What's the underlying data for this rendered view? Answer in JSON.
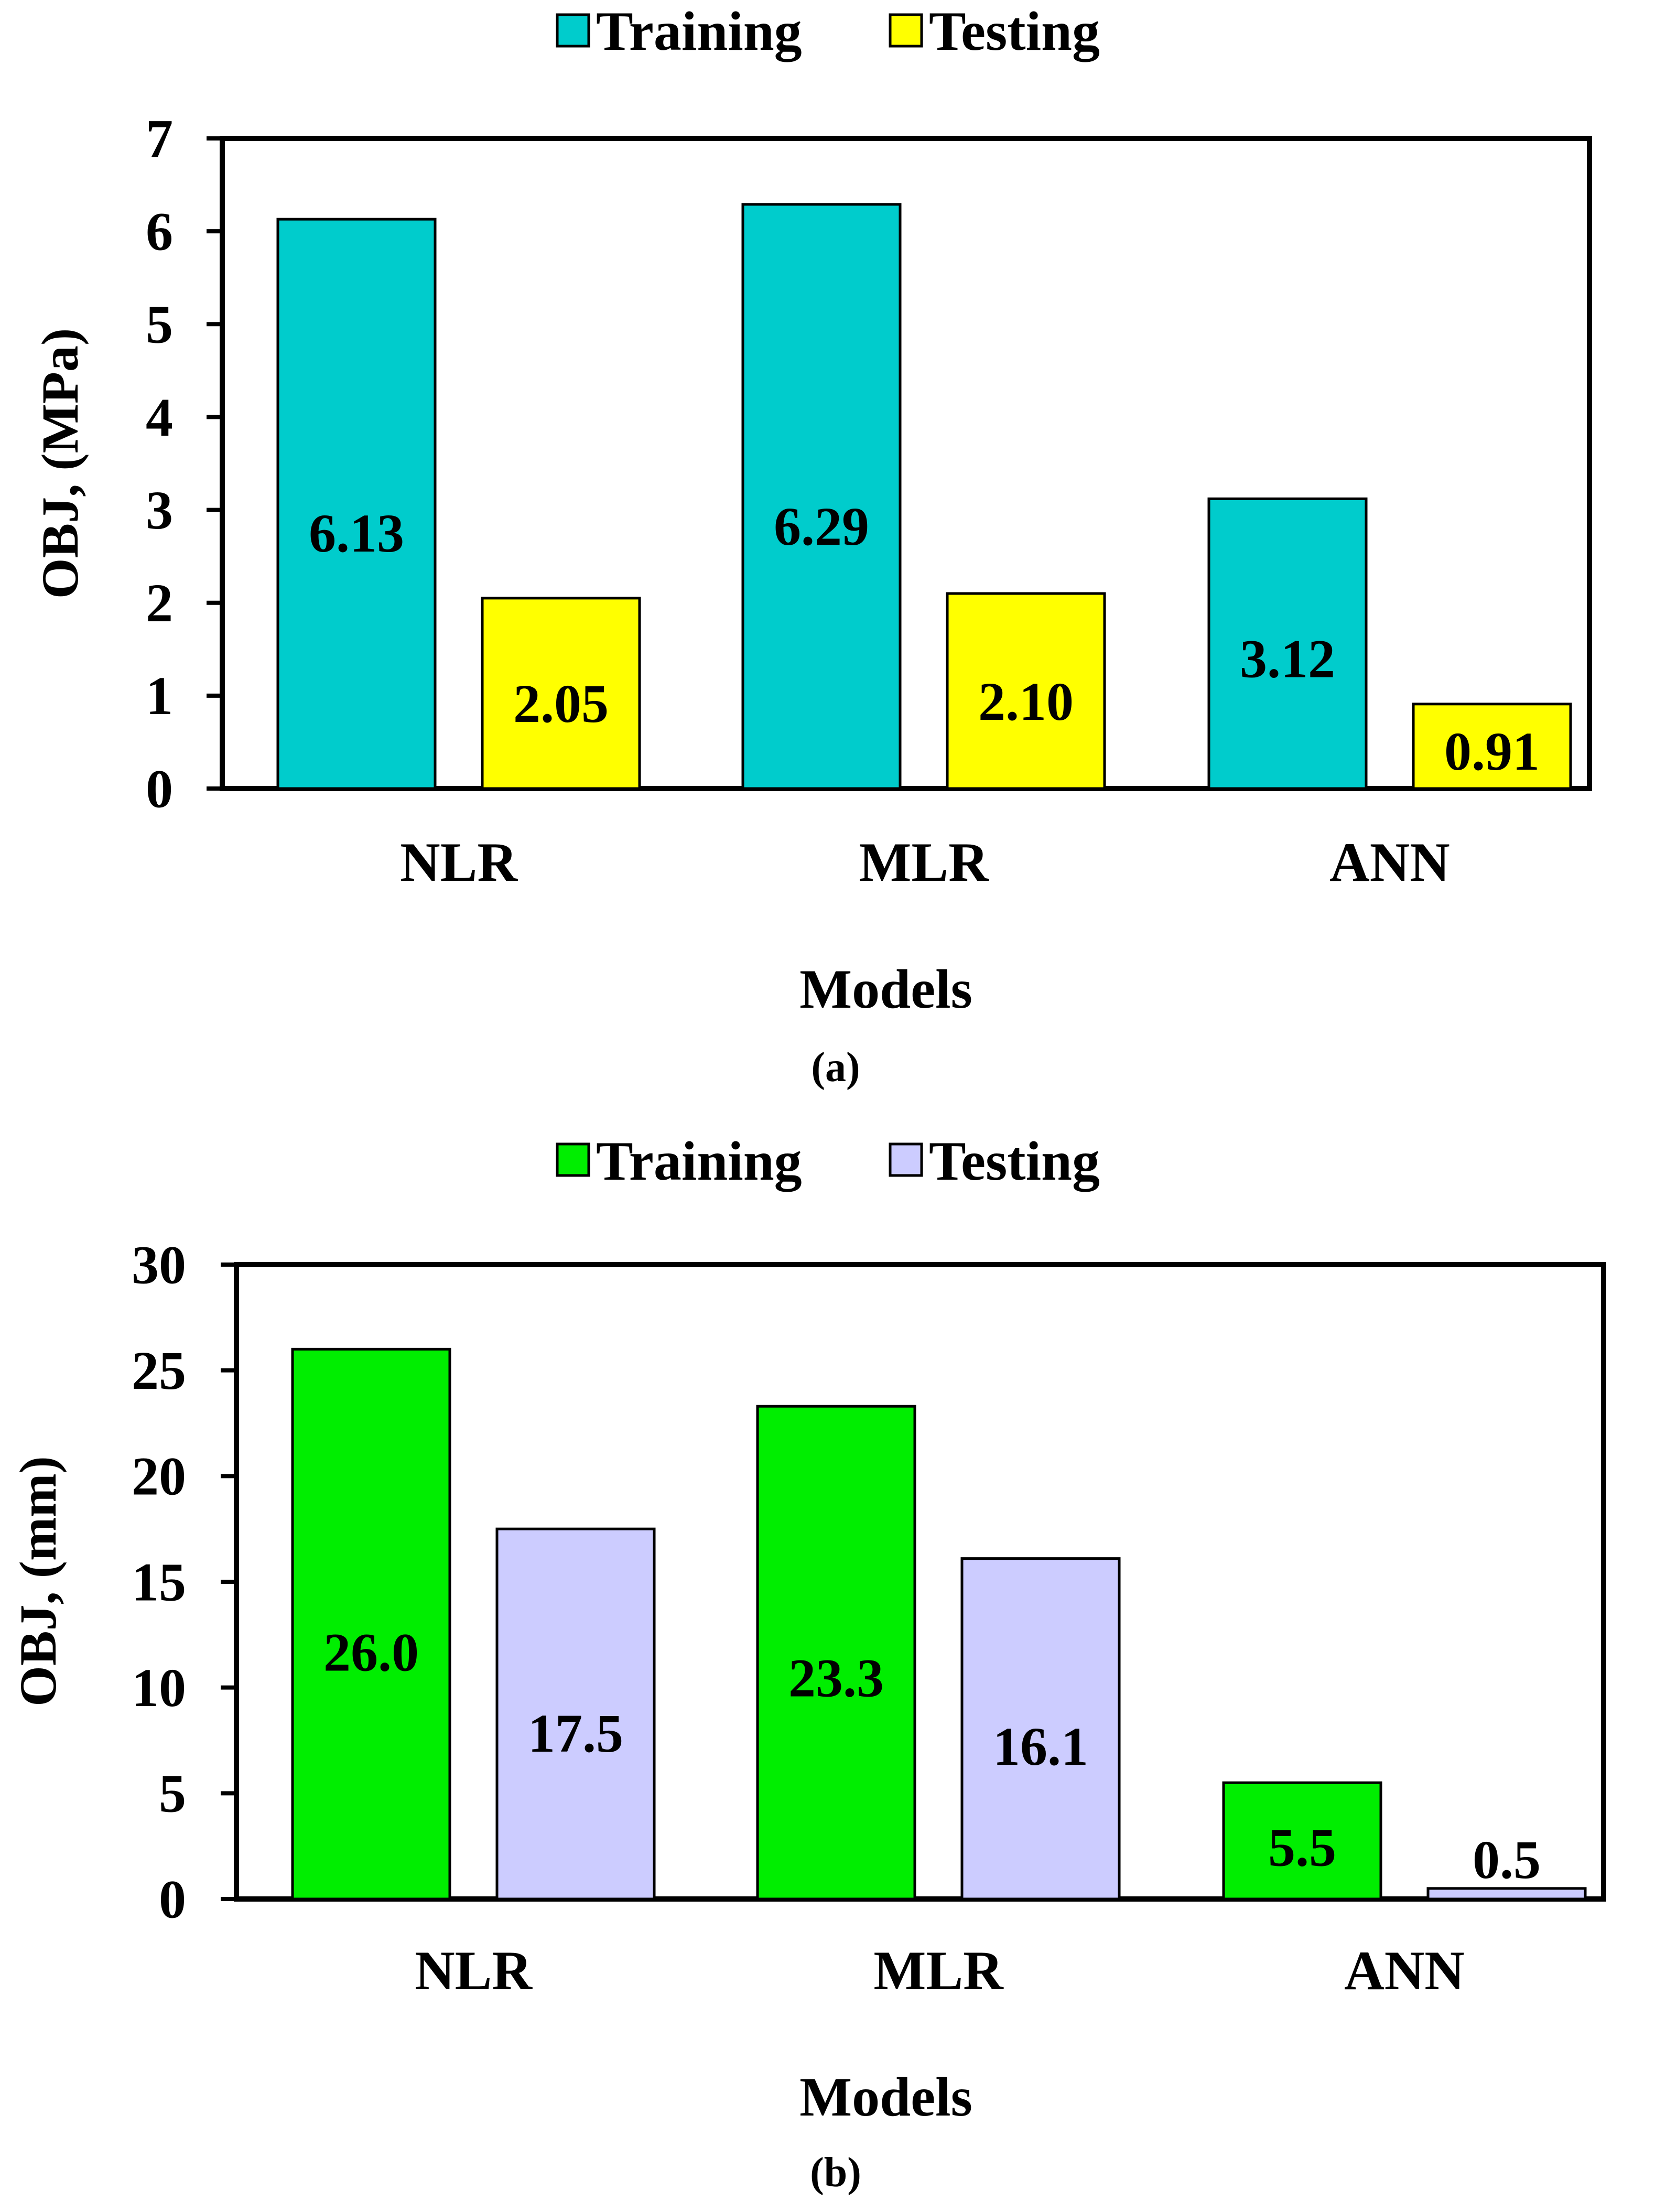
{
  "chart_data": [
    {
      "panel_label": "(a)",
      "type": "bar",
      "categories": [
        "NLR",
        "MLR",
        "ANN"
      ],
      "series": [
        {
          "name": "Training",
          "values": [
            6.13,
            6.29,
            3.12
          ],
          "labels": [
            "6.13",
            "6.29",
            "3.12"
          ],
          "color": "#00CCCC"
        },
        {
          "name": "Testing",
          "values": [
            2.05,
            2.1,
            0.91
          ],
          "labels": [
            "2.05",
            "2.10",
            "0.91"
          ],
          "color": "#FFFF00"
        }
      ],
      "title": "",
      "xlabel": "Models",
      "ylabel": "OBJ, (MPa)",
      "ylim": [
        0,
        7
      ],
      "yticks": [
        "0",
        "1",
        "2",
        "3",
        "4",
        "5",
        "6",
        "7"
      ],
      "grid": false,
      "legend_position": "top-center"
    },
    {
      "panel_label": "(b)",
      "type": "bar",
      "categories": [
        "NLR",
        "MLR",
        "ANN"
      ],
      "series": [
        {
          "name": "Training",
          "values": [
            26.0,
            23.3,
            5.5
          ],
          "labels": [
            "26.0",
            "23.3",
            "5.5"
          ],
          "color": "#00EE00"
        },
        {
          "name": "Testing",
          "values": [
            17.5,
            16.1,
            0.5
          ],
          "labels": [
            "17.5",
            "16.1",
            "0.5"
          ],
          "color": "#CCCCFF"
        }
      ],
      "title": "",
      "xlabel": "Models",
      "ylabel": "OBJ, (mm)",
      "ylim": [
        0,
        30
      ],
      "yticks": [
        "0",
        "5",
        "10",
        "15",
        "20",
        "25",
        "30"
      ],
      "grid": false,
      "legend_position": "top-center"
    }
  ]
}
